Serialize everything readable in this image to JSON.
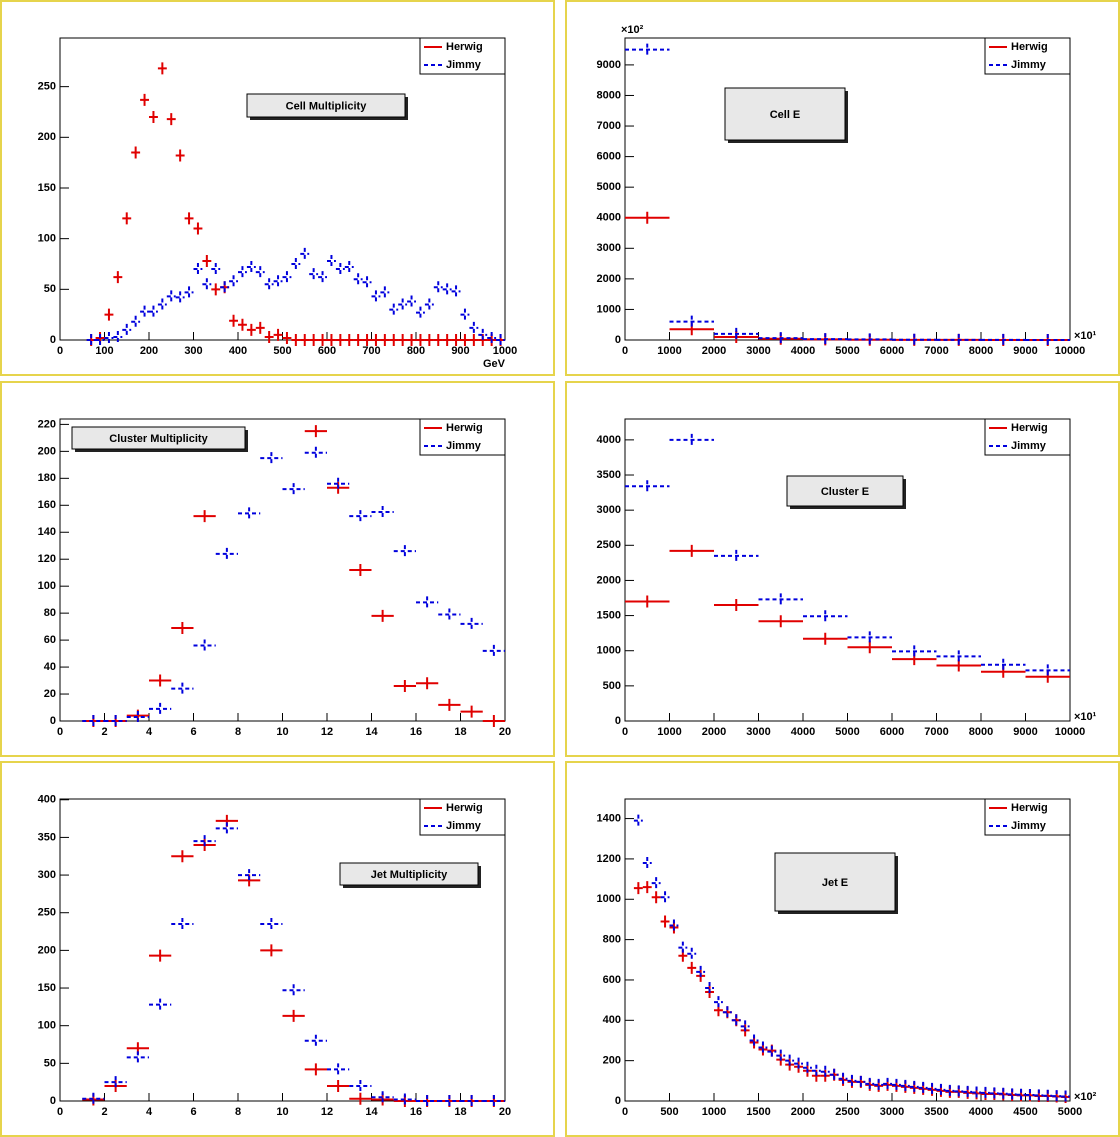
{
  "chart_data": [
    {
      "type": "histogram",
      "title": "Cell Multiplicity",
      "xlabel": "GeV",
      "bins": [
        60,
        80,
        100,
        120,
        140,
        160,
        180,
        200,
        220,
        240,
        260,
        280,
        300,
        320,
        340,
        360,
        380,
        400,
        420,
        440,
        460,
        480,
        500,
        520,
        540,
        560,
        580,
        600,
        620,
        640,
        660,
        680,
        700,
        720,
        740,
        760,
        780,
        800,
        820,
        840,
        860,
        880,
        900,
        920,
        940,
        960,
        980,
        1000
      ],
      "series": [
        {
          "name": "Herwig",
          "color": "#e00000",
          "line_style": "solid",
          "values": [
            0,
            2,
            25,
            62,
            120,
            185,
            237,
            220,
            268,
            218,
            182,
            120,
            110,
            78,
            50,
            52,
            19,
            15,
            10,
            12,
            3,
            5,
            2,
            0,
            0,
            0,
            0,
            0,
            0,
            0,
            0,
            0,
            0,
            0,
            0,
            0,
            0,
            0,
            0,
            0,
            0,
            0,
            0,
            0,
            0,
            0,
            0
          ]
        },
        {
          "name": "Jimmy",
          "color": "#0000dd",
          "line_style": "dashed",
          "values": [
            0,
            0,
            2,
            3,
            10,
            18,
            28,
            28,
            35,
            43,
            42,
            47,
            70,
            55,
            70,
            52,
            58,
            67,
            72,
            67,
            55,
            58,
            62,
            75,
            85,
            65,
            62,
            78,
            70,
            72,
            60,
            57,
            43,
            47,
            30,
            35,
            38,
            27,
            35,
            52,
            50,
            48,
            25,
            12,
            5,
            2,
            0
          ]
        }
      ],
      "xlim": [
        0,
        1000
      ],
      "ylim": [
        0,
        298
      ],
      "xticks": [
        0,
        100,
        200,
        300,
        400,
        500,
        600,
        700,
        800,
        900,
        1000
      ],
      "yticks": [
        0,
        50,
        100,
        150,
        200,
        250
      ]
    },
    {
      "type": "histogram",
      "title": "Cell E",
      "x_multiplier": "×10¹",
      "y_multiplier": "×10²",
      "bins": [
        0,
        1000,
        2000,
        3000,
        4000,
        5000,
        6000,
        7000,
        8000,
        9000,
        10000
      ],
      "series": [
        {
          "name": "Herwig",
          "color": "#e00000",
          "line_style": "solid",
          "values": [
            4000,
            350,
            100,
            40,
            20,
            10,
            5,
            3,
            2,
            1
          ]
        },
        {
          "name": "Jimmy",
          "color": "#0000dd",
          "line_style": "dashed",
          "values": [
            9500,
            600,
            200,
            60,
            30,
            20,
            10,
            5,
            3,
            2
          ]
        }
      ],
      "xlim": [
        0,
        10000
      ],
      "ylim": [
        0,
        9880
      ],
      "xticks": [
        0,
        1000,
        2000,
        3000,
        4000,
        5000,
        6000,
        7000,
        8000,
        9000,
        10000
      ],
      "yticks": [
        0,
        1000,
        2000,
        3000,
        4000,
        5000,
        6000,
        7000,
        8000,
        9000
      ]
    },
    {
      "type": "histogram",
      "title": "Cluster Multiplicity",
      "bins": [
        1,
        2,
        3,
        4,
        5,
        6,
        7,
        8,
        9,
        10,
        11,
        12,
        13,
        14,
        15,
        16,
        17,
        18,
        19,
        20
      ],
      "series": [
        {
          "name": "Herwig",
          "color": "#e00000",
          "line_style": "solid",
          "values": [
            0,
            0,
            4,
            30,
            69,
            152,
            null,
            null,
            null,
            null,
            215,
            173,
            112,
            78,
            26,
            28,
            12,
            7,
            0
          ]
        },
        {
          "name": "Jimmy",
          "color": "#0000dd",
          "line_style": "dashed",
          "values": [
            0,
            0,
            3,
            9,
            24,
            56,
            124,
            154,
            195,
            172,
            199,
            176,
            152,
            155,
            126,
            88,
            79,
            72,
            52
          ]
        }
      ],
      "xlim": [
        0,
        20
      ],
      "ylim": [
        0,
        224
      ],
      "xticks": [
        0,
        2,
        4,
        6,
        8,
        10,
        12,
        14,
        16,
        18,
        20
      ],
      "yticks": [
        0,
        20,
        40,
        60,
        80,
        100,
        120,
        140,
        160,
        180,
        200,
        220
      ]
    },
    {
      "type": "histogram",
      "title": "Cluster E",
      "x_multiplier": "×10¹",
      "bins": [
        0,
        1000,
        2000,
        3000,
        4000,
        5000,
        6000,
        7000,
        8000,
        9000,
        10000
      ],
      "series": [
        {
          "name": "Herwig",
          "color": "#e00000",
          "line_style": "solid",
          "values": [
            1700,
            2420,
            1650,
            1420,
            1170,
            1050,
            880,
            790,
            700,
            630
          ]
        },
        {
          "name": "Jimmy",
          "color": "#0000dd",
          "line_style": "dashed",
          "values": [
            3340,
            4000,
            2350,
            1730,
            1490,
            1190,
            990,
            920,
            800,
            720
          ]
        }
      ],
      "xlim": [
        0,
        10000
      ],
      "ylim": [
        0,
        4297
      ],
      "xticks": [
        0,
        1000,
        2000,
        3000,
        4000,
        5000,
        6000,
        7000,
        8000,
        9000,
        10000
      ],
      "yticks": [
        0,
        500,
        1000,
        1500,
        2000,
        2500,
        3000,
        3500,
        4000
      ]
    },
    {
      "type": "histogram",
      "title": "Jet Multiplicity",
      "bins": [
        1,
        2,
        3,
        4,
        5,
        6,
        7,
        8,
        9,
        10,
        11,
        12,
        13,
        14,
        15,
        16,
        17,
        18,
        19,
        20
      ],
      "series": [
        {
          "name": "Herwig",
          "color": "#e00000",
          "line_style": "solid",
          "values": [
            2,
            20,
            70,
            193,
            325,
            340,
            372,
            293,
            200,
            113,
            42,
            20,
            3,
            2,
            0,
            0,
            0,
            0,
            0
          ]
        },
        {
          "name": "Jimmy",
          "color": "#0000dd",
          "line_style": "dashed",
          "values": [
            3,
            25,
            58,
            128,
            235,
            345,
            362,
            300,
            235,
            147,
            80,
            42,
            20,
            5,
            2,
            0,
            0,
            0,
            0
          ]
        }
      ],
      "xlim": [
        0,
        20
      ],
      "ylim": [
        0,
        401
      ],
      "xticks": [
        0,
        2,
        4,
        6,
        8,
        10,
        12,
        14,
        16,
        18,
        20
      ],
      "yticks": [
        0,
        50,
        100,
        150,
        200,
        250,
        300,
        350,
        400
      ]
    },
    {
      "type": "histogram",
      "title": "Jet E",
      "x_multiplier": "×10²",
      "bins": [
        100,
        200,
        300,
        400,
        500,
        600,
        700,
        800,
        900,
        1000,
        1100,
        1200,
        1300,
        1400,
        1500,
        1600,
        1700,
        1800,
        1900,
        2000,
        2100,
        2200,
        2300,
        2400,
        2500,
        2600,
        2700,
        2800,
        2900,
        3000,
        3100,
        3200,
        3300,
        3400,
        3500,
        3600,
        3700,
        3800,
        3900,
        4000,
        4100,
        4200,
        4300,
        4400,
        4500,
        4600,
        4700,
        4800,
        4900,
        5000
      ],
      "series": [
        {
          "name": "Herwig",
          "color": "#e00000",
          "line_style": "solid",
          "values": [
            1055,
            1060,
            1010,
            890,
            860,
            720,
            660,
            620,
            540,
            450,
            440,
            400,
            350,
            290,
            255,
            250,
            205,
            180,
            170,
            150,
            125,
            125,
            130,
            105,
            95,
            95,
            80,
            75,
            80,
            75,
            70,
            65,
            60,
            55,
            50,
            45,
            45,
            40,
            38,
            35,
            35,
            33,
            30,
            28,
            28,
            25,
            25,
            22,
            20
          ]
        },
        {
          "name": "Jimmy",
          "color": "#0000dd",
          "line_style": "dashed",
          "values": [
            1390,
            1180,
            1080,
            1010,
            870,
            760,
            730,
            640,
            560,
            490,
            440,
            400,
            370,
            300,
            265,
            245,
            225,
            200,
            185,
            165,
            150,
            145,
            130,
            110,
            100,
            95,
            85,
            80,
            85,
            80,
            75,
            70,
            65,
            60,
            55,
            50,
            48,
            45,
            42,
            40,
            38,
            36,
            33,
            31,
            30,
            28,
            26,
            24,
            22
          ]
        }
      ],
      "xlim": [
        0,
        5000
      ],
      "ylim": [
        0,
        1497
      ],
      "xticks": [
        0,
        500,
        1000,
        1500,
        2000,
        2500,
        3000,
        3500,
        4000,
        4500,
        5000
      ],
      "yticks": [
        0,
        200,
        400,
        600,
        800,
        1000,
        1200,
        1400
      ]
    }
  ]
}
